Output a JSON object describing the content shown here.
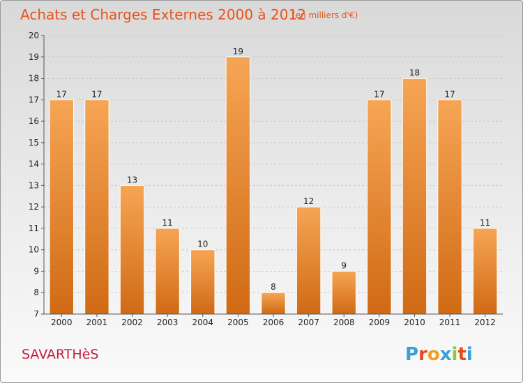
{
  "chart_data": {
    "type": "bar",
    "title": "Achats et Charges Externes 2000 à 2012",
    "subtitle": "(en milliers d'€)",
    "categories": [
      "2000",
      "2001",
      "2002",
      "2003",
      "2004",
      "2005",
      "2006",
      "2007",
      "2008",
      "2009",
      "2010",
      "2011",
      "2012"
    ],
    "values": [
      17,
      17,
      13,
      11,
      10,
      19,
      8,
      12,
      9,
      17,
      18,
      17,
      11
    ],
    "ylim": [
      7,
      20
    ],
    "yticks": [
      7,
      8,
      9,
      10,
      11,
      12,
      13,
      14,
      15,
      16,
      17,
      18,
      19,
      20
    ],
    "xlabel": "",
    "ylabel": "",
    "grid": true,
    "bar_color_top": "#f6a555",
    "bar_color_bottom": "#d06a14"
  },
  "location": "SAVARTHèS",
  "brand": {
    "letters": [
      {
        "char": "P",
        "color": "#3aa0d8"
      },
      {
        "char": "r",
        "color": "#e8481c"
      },
      {
        "char": "o",
        "color": "#f0a020"
      },
      {
        "char": "x",
        "color": "#3aa0d8"
      },
      {
        "char": "i",
        "color": "#8cc63f"
      },
      {
        "char": "t",
        "color": "#e8481c"
      },
      {
        "char": "i",
        "color": "#3aa0d8"
      }
    ]
  }
}
